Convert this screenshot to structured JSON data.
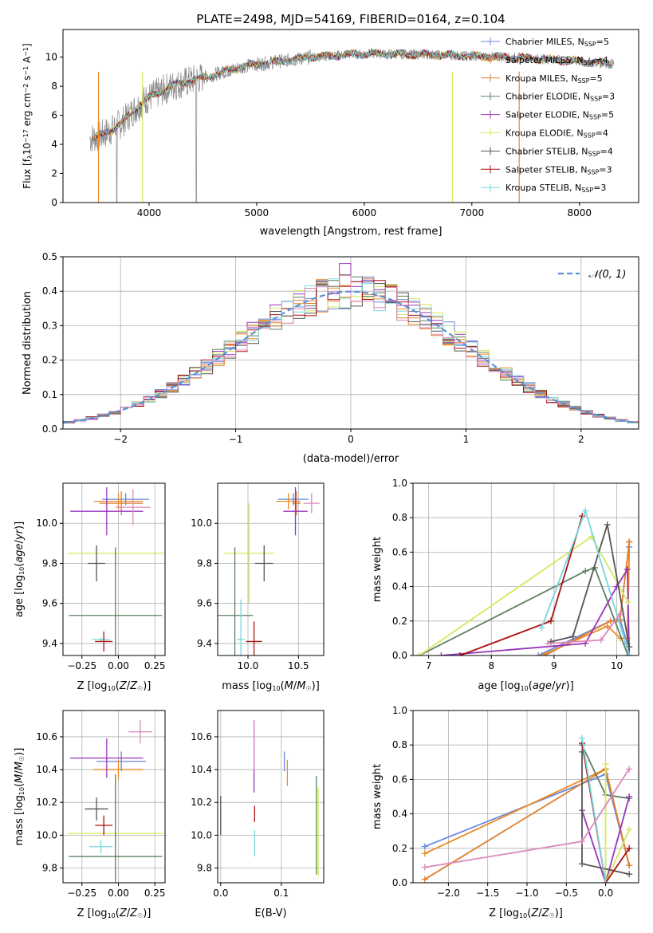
{
  "colors": {
    "chabrier_miles": "#6688dd",
    "salpeter_miles": "#ee8822",
    "kroupa_miles": "#dd7f2f",
    "chabrier_elodie": "#5c8060",
    "salpeter_elodie": "#9933bb",
    "kroupa_elodie": "#d6e85a",
    "chabrier_stelib": "#555555",
    "salpeter_stelib": "#aa1111",
    "kroupa_stelib": "#77d6dd",
    "extra_pink": "#dd88bb",
    "data_gray": "#888888"
  },
  "chart_data": [
    {
      "id": "spectrum",
      "type": "line",
      "title": "PLATE=2498, MJD=54169, FIBERID=0164, z=0.104",
      "xlabel": "wavelength [Angstrom, rest frame]",
      "ylabel": "Flux [f_λ 10⁻¹⁷ erg cm⁻² s⁻¹ A⁻¹]",
      "xlim": [
        3200,
        8550
      ],
      "ylim": [
        0,
        11.9
      ],
      "xticks": [
        "4000",
        "5000",
        "6000",
        "7000",
        "8000"
      ],
      "yticks": [
        "0",
        "2",
        "4",
        "6",
        "8",
        "10"
      ],
      "legend": "upper right",
      "legend_entries": [
        {
          "base": "Chabrier MILES, N",
          "sub": "SSP",
          "tail": "=5",
          "color": "#6688dd"
        },
        {
          "base": "Salpeter MILES, N",
          "sub": "SSP",
          "tail": "=4",
          "color": "#ee8822"
        },
        {
          "base": "Kroupa MILES, N",
          "sub": "SSP",
          "tail": "=5",
          "color": "#dd7f2f"
        },
        {
          "base": "Chabrier ELODIE, N",
          "sub": "SSP",
          "tail": "=3",
          "color": "#5c8060"
        },
        {
          "base": "Salpeter ELODIE, N",
          "sub": "SSP",
          "tail": "=5",
          "color": "#9933bb"
        },
        {
          "base": "Kroupa ELODIE, N",
          "sub": "SSP",
          "tail": "=4",
          "color": "#d6e85a"
        },
        {
          "base": "Chabrier STELIB, N",
          "sub": "SSP",
          "tail": "=4",
          "color": "#555555"
        },
        {
          "base": "Salpeter STELIB, N",
          "sub": "SSP",
          "tail": "=3",
          "color": "#aa1111"
        },
        {
          "base": "Kroupa STELIB, N",
          "sub": "SSP",
          "tail": "=3",
          "color": "#77d6dd"
        }
      ],
      "continuum": [
        [
          3450,
          4.4
        ],
        [
          3550,
          4.6
        ],
        [
          3650,
          5.0
        ],
        [
          3750,
          5.5
        ],
        [
          3850,
          6.3
        ],
        [
          3950,
          7.0
        ],
        [
          4050,
          7.4
        ],
        [
          4150,
          7.8
        ],
        [
          4250,
          8.1
        ],
        [
          4350,
          8.3
        ],
        [
          4500,
          8.6
        ],
        [
          4700,
          9.0
        ],
        [
          4900,
          9.4
        ],
        [
          5100,
          9.6
        ],
        [
          5300,
          9.8
        ],
        [
          5500,
          10.0
        ],
        [
          5700,
          10.1
        ],
        [
          5900,
          10.2
        ],
        [
          6100,
          10.25
        ],
        [
          6300,
          10.2
        ],
        [
          6500,
          10.2
        ],
        [
          6700,
          10.15
        ],
        [
          6900,
          10.1
        ],
        [
          7100,
          10.05
        ],
        [
          7300,
          10.0
        ],
        [
          7500,
          9.95
        ],
        [
          7700,
          9.85
        ],
        [
          7900,
          9.75
        ],
        [
          8100,
          9.65
        ],
        [
          8300,
          9.55
        ]
      ],
      "model_drop_lines": [
        3530,
        3940,
        6820,
        7440
      ]
    },
    {
      "id": "residuals",
      "type": "histogram",
      "xlabel": "(data-model)/error",
      "ylabel": "Normed distribution",
      "xlim": [
        -2.5,
        2.5
      ],
      "ylim": [
        0,
        0.5
      ],
      "xticks": [
        "−2",
        "−1",
        "0",
        "1",
        "2"
      ],
      "yticks": [
        "0.0",
        "0.1",
        "0.2",
        "0.3",
        "0.4",
        "0.5"
      ],
      "legend": "upper right",
      "legend_label": "𝒩(0, 1)",
      "bin_width": 0.1,
      "peak_bin_value": 0.48,
      "normal_mean": 0,
      "normal_sigma": 1
    },
    {
      "id": "age-vs-Z",
      "type": "errorbar",
      "xlabel": "Z [log₁₀(Z/Z☉)]",
      "ylabel": "age  [log₁₀(age/yr)]",
      "xlim": [
        -0.38,
        0.32
      ],
      "ylim": [
        9.34,
        10.2
      ],
      "xticks": [
        "−0.25",
        "0.00",
        "0.25"
      ],
      "yticks": [
        "9.4",
        "9.6",
        "9.8",
        "10.0"
      ],
      "points": [
        {
          "x": 0.05,
          "xerr": 0.16,
          "y": 10.12,
          "yerr": 0.03,
          "color": "#6688dd"
        },
        {
          "x": 0.0,
          "xerr": 0.17,
          "y": 10.11,
          "yerr": 0.04,
          "color": "#ee8822"
        },
        {
          "x": 0.02,
          "xerr": 0.15,
          "y": 10.1,
          "yerr": 0.06,
          "color": "#dd7f2f"
        },
        {
          "x": -0.08,
          "xerr": 0.25,
          "y": 10.06,
          "yerr": 0.12,
          "color": "#9933bb"
        },
        {
          "x": 0.1,
          "xerr": 0.12,
          "y": 10.08,
          "yerr": 0.09,
          "color": "#dd88bb"
        },
        {
          "x": -0.02,
          "xerr": 0.33,
          "y": 9.85,
          "yerr": 0.03,
          "color": "#d6e85a"
        },
        {
          "x": -0.15,
          "xerr": 0.06,
          "y": 9.8,
          "yerr": 0.09,
          "color": "#555555"
        },
        {
          "x": -0.02,
          "xerr": 0.32,
          "y": 9.54,
          "yerr": 0.34,
          "color": "#5c8060"
        },
        {
          "x": -0.12,
          "xerr": 0.06,
          "y": 9.42,
          "yerr": 0.01,
          "color": "#77d6dd"
        },
        {
          "x": -0.1,
          "xerr": 0.06,
          "y": 9.41,
          "yerr": 0.05,
          "color": "#aa1111"
        }
      ]
    },
    {
      "id": "age-vs-mass",
      "type": "errorbar",
      "xlabel": "mass [log₁₀(M/M☉)]",
      "ylabel": "",
      "xlim": [
        9.7,
        10.75
      ],
      "ylim": [
        9.34,
        10.2
      ],
      "xticks": [
        "10.0",
        "10.5"
      ],
      "yticks": [
        "9.4",
        "9.6",
        "9.8",
        "10.0"
      ],
      "points": [
        {
          "x": 10.45,
          "xerr": 0.15,
          "y": 10.12,
          "yerr": 0.03,
          "color": "#6688dd"
        },
        {
          "x": 10.4,
          "xerr": 0.12,
          "y": 10.11,
          "yerr": 0.04,
          "color": "#ee8822"
        },
        {
          "x": 10.48,
          "xerr": 0.04,
          "y": 10.1,
          "yerr": 0.06,
          "color": "#dd7f2f"
        },
        {
          "x": 10.47,
          "xerr": 0.12,
          "y": 10.06,
          "yerr": 0.12,
          "color": "#9933bb"
        },
        {
          "x": 10.63,
          "xerr": 0.08,
          "y": 10.1,
          "yerr": 0.05,
          "color": "#dd88bb"
        },
        {
          "x": 10.01,
          "xerr": 0.25,
          "y": 9.85,
          "yerr": 0.25,
          "color": "#d6e85a"
        },
        {
          "x": 10.16,
          "xerr": 0.09,
          "y": 9.8,
          "yerr": 0.09,
          "color": "#555555"
        },
        {
          "x": 9.87,
          "xerr": 0.18,
          "y": 9.54,
          "yerr": 0.34,
          "color": "#5c8060"
        },
        {
          "x": 9.93,
          "xerr": 0.04,
          "y": 9.42,
          "yerr": 0.2,
          "color": "#77d6dd"
        },
        {
          "x": 10.06,
          "xerr": 0.08,
          "y": 9.41,
          "yerr": 0.1,
          "color": "#aa1111"
        }
      ]
    },
    {
      "id": "mass-weight-vs-age",
      "type": "line",
      "xlabel": "age  [log₁₀(age/yr)]",
      "ylabel": "mass weight",
      "xlim": [
        6.75,
        10.35
      ],
      "ylim": [
        0,
        1.0
      ],
      "xticks": [
        "7",
        "8",
        "9",
        "10"
      ],
      "yticks": [
        "0.0",
        "0.2",
        "0.4",
        "0.6",
        "0.8",
        "1.0"
      ],
      "series": [
        {
          "color": "#6688dd",
          "x": [
            8.75,
            9.9,
            10.05,
            10.17,
            10.2
          ],
          "y": [
            0.0,
            0.2,
            0.21,
            0.07,
            0.63
          ]
        },
        {
          "color": "#ee8822",
          "x": [
            8.8,
            9.85,
            10.06,
            10.17,
            10.2
          ],
          "y": [
            0.0,
            0.17,
            0.1,
            0.1,
            0.66
          ]
        },
        {
          "color": "#dd7f2f",
          "x": [
            8.85,
            9.9,
            10.05,
            10.2
          ],
          "y": [
            0.0,
            0.2,
            0.2,
            0.66
          ]
        },
        {
          "color": "#5c8060",
          "x": [
            6.85,
            9.5,
            9.65,
            10.18
          ],
          "y": [
            0.0,
            0.49,
            0.51,
            0.0
          ]
        },
        {
          "color": "#9933bb",
          "x": [
            7.2,
            9.5,
            10.0,
            10.17,
            10.2
          ],
          "y": [
            0.0,
            0.07,
            0.4,
            0.5,
            0.0
          ]
        },
        {
          "color": "#d6e85a",
          "x": [
            6.85,
            9.6,
            10.18
          ],
          "y": [
            0.0,
            0.69,
            0.31
          ]
        },
        {
          "color": "#555555",
          "x": [
            8.95,
            9.3,
            9.85,
            10.2
          ],
          "y": [
            0.08,
            0.11,
            0.76,
            0.05
          ]
        },
        {
          "color": "#aa1111",
          "x": [
            7.5,
            8.95,
            9.45
          ],
          "y": [
            0.0,
            0.2,
            0.81
          ]
        },
        {
          "color": "#77d6dd",
          "x": [
            8.8,
            9.5,
            10.2
          ],
          "y": [
            0.16,
            0.84,
            0.0
          ]
        },
        {
          "color": "#dd88bb",
          "x": [
            8.9,
            9.75,
            10.05
          ],
          "y": [
            0.07,
            0.09,
            0.24
          ]
        }
      ]
    },
    {
      "id": "mass-vs-Z",
      "type": "errorbar",
      "xlabel": "Z [log₁₀(Z/Z☉)]",
      "ylabel": "mass [log₁₀(M/M☉)]",
      "xlim": [
        -0.38,
        0.32
      ],
      "ylim": [
        9.71,
        10.76
      ],
      "xticks": [
        "−0.25",
        "0.00",
        "0.25"
      ],
      "yticks": [
        "9.8",
        "10.0",
        "10.2",
        "10.4",
        "10.6"
      ],
      "points": [
        {
          "x": 0.02,
          "xerr": 0.17,
          "y": 10.45,
          "yerr": 0.06,
          "color": "#6688dd"
        },
        {
          "x": 0.0,
          "xerr": 0.17,
          "y": 10.4,
          "yerr": 0.06,
          "color": "#ee8822"
        },
        {
          "x": -0.08,
          "xerr": 0.25,
          "y": 10.47,
          "yerr": 0.12,
          "color": "#9933bb"
        },
        {
          "x": 0.15,
          "xerr": 0.08,
          "y": 10.63,
          "yerr": 0.07,
          "color": "#dd88bb"
        },
        {
          "x": -0.02,
          "xerr": 0.33,
          "y": 10.01,
          "yerr": 0.28,
          "color": "#d6e85a"
        },
        {
          "x": -0.15,
          "xerr": 0.08,
          "y": 10.16,
          "yerr": 0.07,
          "color": "#555555"
        },
        {
          "x": -0.02,
          "xerr": 0.32,
          "y": 9.87,
          "yerr": 0.5,
          "color": "#5c8060"
        },
        {
          "x": -0.1,
          "xerr": 0.06,
          "y": 10.06,
          "yerr": 0.06,
          "color": "#aa1111"
        },
        {
          "x": -0.12,
          "xerr": 0.08,
          "y": 9.93,
          "yerr": 0.04,
          "color": "#77d6dd"
        }
      ]
    },
    {
      "id": "mass-vs-ebv",
      "type": "errorbar",
      "xlabel": "E(B-V)",
      "ylabel": "",
      "xlim": [
        -0.005,
        0.17
      ],
      "ylim": [
        9.71,
        10.76
      ],
      "xticks": [
        "0.0",
        "0.1"
      ],
      "yticks": [
        "9.8",
        "10.0",
        "10.2",
        "10.4",
        "10.6"
      ],
      "points": [
        {
          "x": 0.0,
          "xerr": 0.0,
          "y": 10.12,
          "yerr": 0.12,
          "color": "#555555"
        },
        {
          "x": 0.055,
          "xerr": 0.0,
          "y": 10.48,
          "yerr": 0.22,
          "color": "#9933bb"
        },
        {
          "x": 0.055,
          "xerr": 0.0,
          "y": 10.55,
          "yerr": 0.15,
          "color": "#dd88bb"
        },
        {
          "x": 0.056,
          "xerr": 0.0,
          "y": 10.13,
          "yerr": 0.05,
          "color": "#aa1111"
        },
        {
          "x": 0.056,
          "xerr": 0.0,
          "y": 9.95,
          "yerr": 0.08,
          "color": "#77d6dd"
        },
        {
          "x": 0.105,
          "xerr": 0.0,
          "y": 10.45,
          "yerr": 0.06,
          "color": "#6688dd"
        },
        {
          "x": 0.11,
          "xerr": 0.0,
          "y": 10.38,
          "yerr": 0.08,
          "color": "#ee8822"
        },
        {
          "x": 0.158,
          "xerr": 0.0,
          "y": 10.06,
          "yerr": 0.3,
          "color": "#5c8060"
        },
        {
          "x": 0.161,
          "xerr": 0.0,
          "y": 10.02,
          "yerr": 0.27,
          "color": "#d6e85a"
        }
      ]
    },
    {
      "id": "mass-weight-vs-Z",
      "type": "line",
      "xlabel": "Z [log₁₀(Z/Z☉)]",
      "ylabel": "mass weight",
      "xlim": [
        -2.45,
        0.42
      ],
      "ylim": [
        0,
        1.0
      ],
      "xticks": [
        "−2.0",
        "−1.5",
        "−1.0",
        "−0.5",
        "0.0"
      ],
      "yticks": [
        "0.0",
        "0.2",
        "0.4",
        "0.6",
        "0.8",
        "1.0"
      ],
      "series": [
        {
          "color": "#6688dd",
          "x": [
            -2.3,
            0.0,
            0.3
          ],
          "y": [
            0.21,
            0.63,
            0.1
          ]
        },
        {
          "color": "#ee8822",
          "x": [
            -2.3,
            0.0,
            0.3
          ],
          "y": [
            0.17,
            0.66,
            0.1
          ]
        },
        {
          "color": "#dd7f2f",
          "x": [
            -2.3,
            0.0,
            0.3
          ],
          "y": [
            0.02,
            0.66,
            0.1
          ]
        },
        {
          "color": "#5c8060",
          "x": [
            -0.3,
            0.0,
            0.3
          ],
          "y": [
            0.8,
            0.51,
            0.49
          ]
        },
        {
          "color": "#9933bb",
          "x": [
            -0.3,
            0.0,
            0.3
          ],
          "y": [
            0.42,
            0.0,
            0.5
          ]
        },
        {
          "color": "#d6e85a",
          "x": [
            0.0,
            0.0,
            0.3
          ],
          "y": [
            0.69,
            0.0,
            0.31
          ]
        },
        {
          "color": "#555555",
          "x": [
            -0.3,
            -0.3,
            0.3
          ],
          "y": [
            0.76,
            0.11,
            0.05
          ]
        },
        {
          "color": "#aa1111",
          "x": [
            -0.3,
            0.0,
            0.3
          ],
          "y": [
            0.81,
            0.0,
            0.2
          ]
        },
        {
          "color": "#77d6dd",
          "x": [
            -0.3,
            0.0
          ],
          "y": [
            0.84,
            0.0
          ]
        },
        {
          "color": "#dd88bb",
          "x": [
            -2.3,
            -0.3,
            0.3
          ],
          "y": [
            0.09,
            0.24,
            0.66
          ]
        }
      ]
    }
  ]
}
